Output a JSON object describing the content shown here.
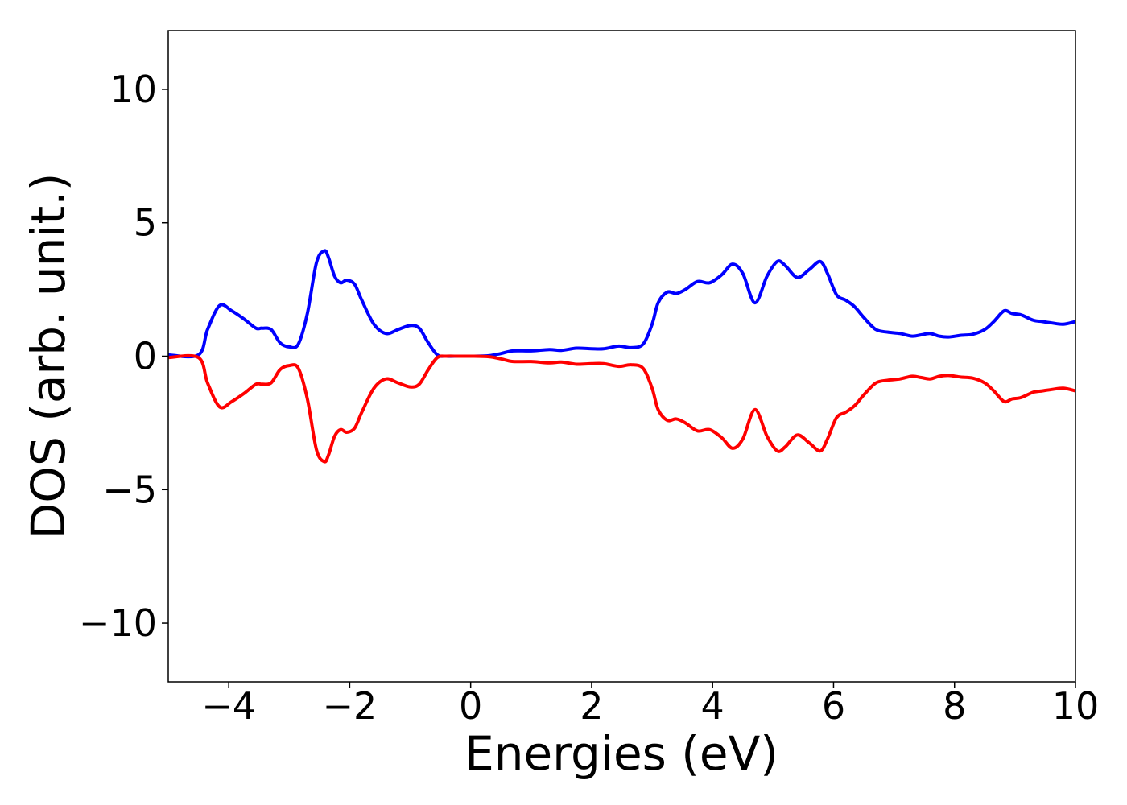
{
  "chart_data": {
    "type": "line",
    "xlabel": "Energies (eV)",
    "ylabel": "DOS (arb. unit.)",
    "xlim": [
      -5,
      10
    ],
    "ylim": [
      -12.2,
      12.2
    ],
    "xticks": [
      -4,
      -2,
      0,
      2,
      4,
      6,
      8,
      10
    ],
    "xtick_labels": [
      "−4",
      "−2",
      "0",
      "2",
      "4",
      "6",
      "8",
      "10"
    ],
    "yticks": [
      -10,
      -5,
      0,
      5,
      10
    ],
    "ytick_labels": [
      "−10",
      "−5",
      "0",
      "5",
      "10"
    ],
    "grid": false,
    "series": [
      {
        "color": "#0000ff",
        "x": [
          -5.0,
          -4.5,
          -4.35,
          -4.15,
          -3.95,
          -3.75,
          -3.55,
          -3.45,
          -3.3,
          -3.15,
          -3.0,
          -2.85,
          -2.7,
          -2.55,
          -2.42,
          -2.35,
          -2.25,
          -2.15,
          -2.05,
          -1.92,
          -1.8,
          -1.6,
          -1.4,
          -1.2,
          -1.0,
          -0.85,
          -0.7,
          -0.55,
          -0.4,
          -0.2,
          0.0,
          0.3,
          0.5,
          0.7,
          1.0,
          1.3,
          1.5,
          1.75,
          2.0,
          2.2,
          2.45,
          2.65,
          2.85,
          3.0,
          3.1,
          3.25,
          3.4,
          3.55,
          3.75,
          3.95,
          4.15,
          4.33,
          4.5,
          4.7,
          4.9,
          5.07,
          5.2,
          5.4,
          5.6,
          5.78,
          5.9,
          6.05,
          6.2,
          6.35,
          6.5,
          6.7,
          6.9,
          7.1,
          7.3,
          7.45,
          7.6,
          7.75,
          7.9,
          8.1,
          8.3,
          8.5,
          8.65,
          8.82,
          8.95,
          9.1,
          9.3,
          9.45,
          9.6,
          9.8,
          10.0
        ],
        "y": [
          0.05,
          0.05,
          1.0,
          1.9,
          1.7,
          1.4,
          1.05,
          1.05,
          1.0,
          0.5,
          0.35,
          0.45,
          1.6,
          3.5,
          3.95,
          3.7,
          3.0,
          2.75,
          2.85,
          2.7,
          2.1,
          1.2,
          0.85,
          1.0,
          1.15,
          1.05,
          0.5,
          0.05,
          0.0,
          0.0,
          0.0,
          0.02,
          0.1,
          0.2,
          0.2,
          0.25,
          0.22,
          0.3,
          0.28,
          0.28,
          0.38,
          0.32,
          0.45,
          1.2,
          2.0,
          2.4,
          2.35,
          2.5,
          2.8,
          2.75,
          3.05,
          3.45,
          3.1,
          2.0,
          3.0,
          3.55,
          3.4,
          2.95,
          3.25,
          3.55,
          3.1,
          2.3,
          2.1,
          1.85,
          1.45,
          1.0,
          0.9,
          0.85,
          0.75,
          0.8,
          0.85,
          0.75,
          0.72,
          0.78,
          0.82,
          1.0,
          1.3,
          1.7,
          1.6,
          1.55,
          1.35,
          1.3,
          1.25,
          1.2,
          1.3
        ]
      },
      {
        "color": "#ff0000",
        "x": [
          -5.0,
          -4.5,
          -4.35,
          -4.15,
          -3.95,
          -3.75,
          -3.55,
          -3.45,
          -3.3,
          -3.15,
          -3.0,
          -2.85,
          -2.7,
          -2.55,
          -2.42,
          -2.35,
          -2.25,
          -2.15,
          -2.05,
          -1.92,
          -1.8,
          -1.6,
          -1.4,
          -1.2,
          -1.0,
          -0.85,
          -0.7,
          -0.55,
          -0.4,
          -0.2,
          0.0,
          0.3,
          0.5,
          0.7,
          1.0,
          1.3,
          1.5,
          1.75,
          2.0,
          2.2,
          2.45,
          2.65,
          2.85,
          3.0,
          3.1,
          3.25,
          3.4,
          3.55,
          3.75,
          3.95,
          4.15,
          4.33,
          4.5,
          4.7,
          4.9,
          5.07,
          5.2,
          5.4,
          5.6,
          5.78,
          5.9,
          6.05,
          6.2,
          6.35,
          6.5,
          6.7,
          6.9,
          7.1,
          7.3,
          7.45,
          7.6,
          7.75,
          7.9,
          8.1,
          8.3,
          8.5,
          8.65,
          8.82,
          8.95,
          9.1,
          9.3,
          9.45,
          9.6,
          9.8,
          10.0
        ],
        "y": [
          -0.05,
          -0.05,
          -1.0,
          -1.9,
          -1.7,
          -1.4,
          -1.05,
          -1.05,
          -1.0,
          -0.5,
          -0.35,
          -0.45,
          -1.6,
          -3.5,
          -3.95,
          -3.7,
          -3.0,
          -2.75,
          -2.85,
          -2.7,
          -2.1,
          -1.2,
          -0.85,
          -1.0,
          -1.15,
          -1.05,
          -0.5,
          -0.05,
          0.0,
          0.0,
          0.0,
          -0.02,
          -0.1,
          -0.2,
          -0.2,
          -0.25,
          -0.22,
          -0.3,
          -0.28,
          -0.28,
          -0.38,
          -0.32,
          -0.45,
          -1.2,
          -2.0,
          -2.4,
          -2.35,
          -2.5,
          -2.8,
          -2.75,
          -3.05,
          -3.45,
          -3.1,
          -2.0,
          -3.0,
          -3.55,
          -3.4,
          -2.95,
          -3.25,
          -3.55,
          -3.1,
          -2.3,
          -2.1,
          -1.85,
          -1.45,
          -1.0,
          -0.9,
          -0.85,
          -0.75,
          -0.8,
          -0.85,
          -0.75,
          -0.72,
          -0.78,
          -0.82,
          -1.0,
          -1.3,
          -1.7,
          -1.6,
          -1.55,
          -1.35,
          -1.3,
          -1.25,
          -1.2,
          -1.3
        ]
      }
    ]
  }
}
